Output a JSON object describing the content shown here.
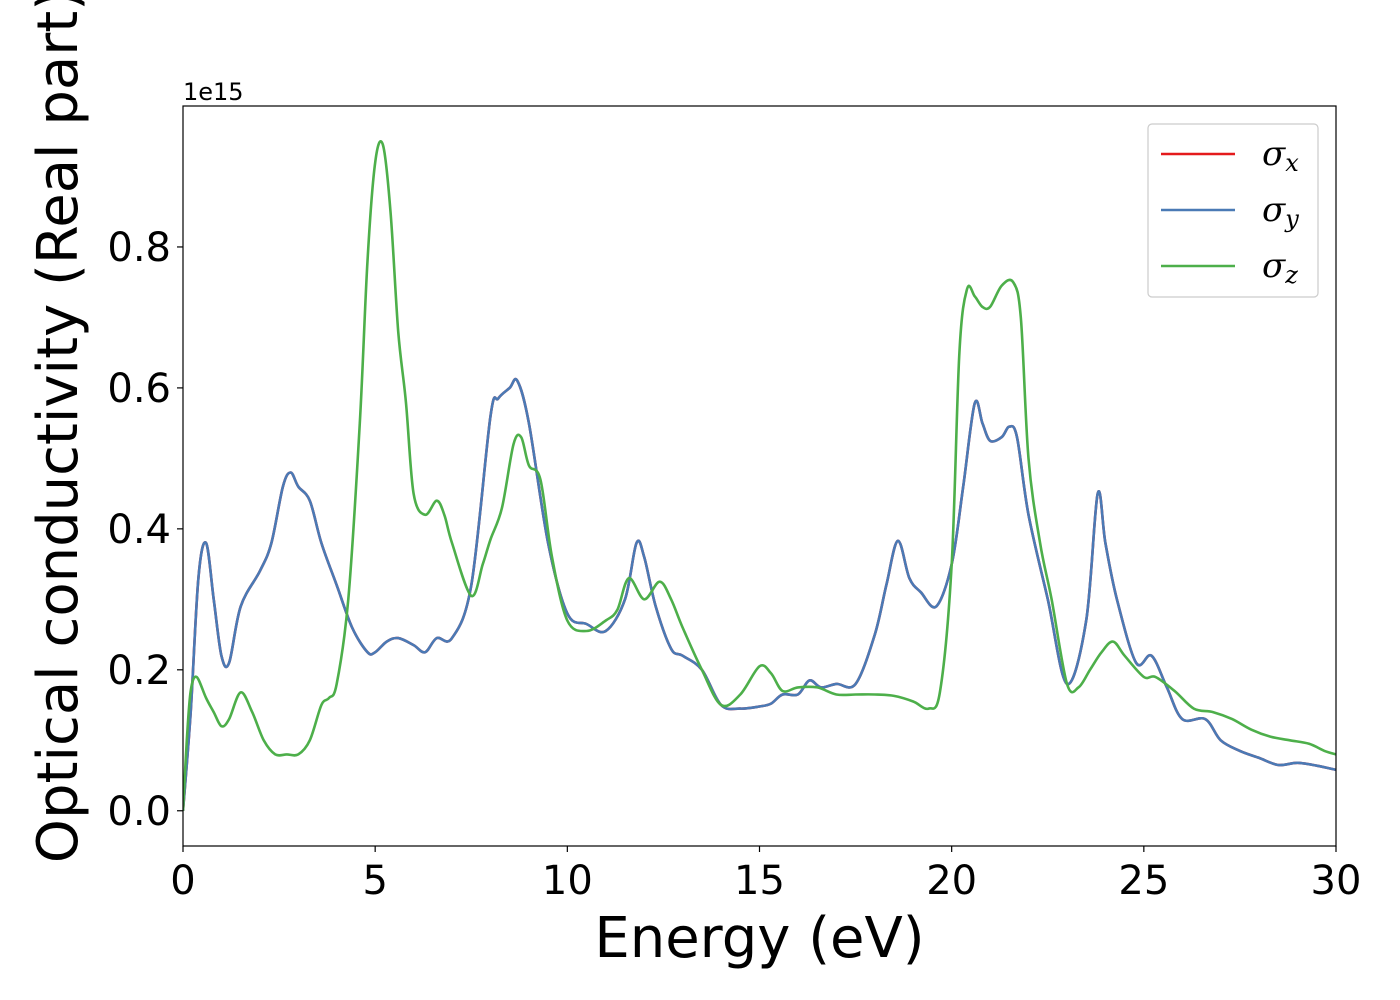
{
  "chart_data": {
    "type": "line",
    "xlabel": "Energy (eV)",
    "ylabel": "Optical conductivity (Real part)",
    "offset_label": "1e15",
    "xlim": [
      0,
      30
    ],
    "ylim": [
      -0.05,
      1.0
    ],
    "xticks": [
      0,
      5,
      10,
      15,
      20,
      25,
      30
    ],
    "xtick_labels": [
      "0",
      "5",
      "10",
      "15",
      "20",
      "25",
      "30"
    ],
    "yticks": [
      0.0,
      0.2,
      0.4,
      0.6,
      0.8
    ],
    "ytick_labels": [
      "0.0",
      "0.2",
      "0.4",
      "0.6",
      "0.8"
    ],
    "grid": false,
    "legend_position": "top-right",
    "series": [
      {
        "name": "σx",
        "symbol": "σ",
        "sub": "x",
        "color": "#e41a1c",
        "x": [
          0,
          0.2,
          0.4,
          0.6,
          0.8,
          1.0,
          1.2,
          1.5,
          2.0,
          2.3,
          2.6,
          2.8,
          3.0,
          3.3,
          3.6,
          4.0,
          4.4,
          4.8,
          5.0,
          5.3,
          5.6,
          6.0,
          6.3,
          6.6,
          7.0,
          7.5,
          8.0,
          8.2,
          8.5,
          8.7,
          9.0,
          9.5,
          10.0,
          10.5,
          11.0,
          11.5,
          11.8,
          12.0,
          12.3,
          12.7,
          13.0,
          13.5,
          14.0,
          14.5,
          15.0,
          15.3,
          15.6,
          16.0,
          16.3,
          16.6,
          17.0,
          17.5,
          18.0,
          18.3,
          18.6,
          18.9,
          19.2,
          19.6,
          20.0,
          20.3,
          20.6,
          20.8,
          21.0,
          21.3,
          21.5,
          21.7,
          22.0,
          22.5,
          23.0,
          23.5,
          23.8,
          24.0,
          24.3,
          24.8,
          25.2,
          25.6,
          26.0,
          26.6,
          27.0,
          27.5,
          28.0,
          28.5,
          29.0,
          29.5,
          30.0
        ],
        "y": [
          0.0,
          0.14,
          0.33,
          0.38,
          0.3,
          0.22,
          0.21,
          0.29,
          0.34,
          0.38,
          0.46,
          0.48,
          0.46,
          0.44,
          0.38,
          0.32,
          0.26,
          0.225,
          0.225,
          0.24,
          0.245,
          0.235,
          0.225,
          0.245,
          0.245,
          0.32,
          0.56,
          0.585,
          0.6,
          0.61,
          0.55,
          0.38,
          0.28,
          0.265,
          0.255,
          0.3,
          0.38,
          0.36,
          0.29,
          0.23,
          0.22,
          0.2,
          0.15,
          0.145,
          0.148,
          0.152,
          0.165,
          0.165,
          0.185,
          0.175,
          0.18,
          0.18,
          0.25,
          0.32,
          0.383,
          0.33,
          0.31,
          0.29,
          0.35,
          0.46,
          0.578,
          0.55,
          0.525,
          0.53,
          0.545,
          0.53,
          0.42,
          0.3,
          0.18,
          0.27,
          0.45,
          0.38,
          0.3,
          0.21,
          0.22,
          0.175,
          0.13,
          0.13,
          0.1,
          0.085,
          0.075,
          0.065,
          0.068,
          0.064,
          0.058
        ]
      },
      {
        "name": "σy",
        "symbol": "σ",
        "sub": "y",
        "color": "#4a7ab5",
        "x": [
          0,
          0.2,
          0.4,
          0.6,
          0.8,
          1.0,
          1.2,
          1.5,
          2.0,
          2.3,
          2.6,
          2.8,
          3.0,
          3.3,
          3.6,
          4.0,
          4.4,
          4.8,
          5.0,
          5.3,
          5.6,
          6.0,
          6.3,
          6.6,
          7.0,
          7.5,
          8.0,
          8.2,
          8.5,
          8.7,
          9.0,
          9.5,
          10.0,
          10.5,
          11.0,
          11.5,
          11.8,
          12.0,
          12.3,
          12.7,
          13.0,
          13.5,
          14.0,
          14.5,
          15.0,
          15.3,
          15.6,
          16.0,
          16.3,
          16.6,
          17.0,
          17.5,
          18.0,
          18.3,
          18.6,
          18.9,
          19.2,
          19.6,
          20.0,
          20.3,
          20.6,
          20.8,
          21.0,
          21.3,
          21.5,
          21.7,
          22.0,
          22.5,
          23.0,
          23.5,
          23.8,
          24.0,
          24.3,
          24.8,
          25.2,
          25.6,
          26.0,
          26.6,
          27.0,
          27.5,
          28.0,
          28.5,
          29.0,
          29.5,
          30.0
        ],
        "y": [
          0.0,
          0.14,
          0.33,
          0.38,
          0.3,
          0.22,
          0.21,
          0.29,
          0.34,
          0.38,
          0.46,
          0.48,
          0.46,
          0.44,
          0.38,
          0.32,
          0.26,
          0.225,
          0.225,
          0.24,
          0.245,
          0.235,
          0.225,
          0.245,
          0.245,
          0.32,
          0.56,
          0.585,
          0.6,
          0.61,
          0.55,
          0.38,
          0.28,
          0.265,
          0.255,
          0.3,
          0.38,
          0.36,
          0.29,
          0.23,
          0.22,
          0.2,
          0.15,
          0.145,
          0.148,
          0.152,
          0.165,
          0.165,
          0.185,
          0.175,
          0.18,
          0.18,
          0.25,
          0.32,
          0.383,
          0.33,
          0.31,
          0.29,
          0.35,
          0.46,
          0.578,
          0.55,
          0.525,
          0.53,
          0.545,
          0.53,
          0.42,
          0.3,
          0.18,
          0.27,
          0.45,
          0.38,
          0.3,
          0.21,
          0.22,
          0.175,
          0.13,
          0.13,
          0.1,
          0.085,
          0.075,
          0.065,
          0.068,
          0.064,
          0.058
        ]
      },
      {
        "name": "σz",
        "symbol": "σ",
        "sub": "z",
        "color": "#4daf4a",
        "x": [
          0,
          0.1,
          0.2,
          0.35,
          0.6,
          0.8,
          1.0,
          1.2,
          1.5,
          1.8,
          2.1,
          2.4,
          2.7,
          3.0,
          3.3,
          3.6,
          3.8,
          4.0,
          4.3,
          4.6,
          4.8,
          5.0,
          5.2,
          5.4,
          5.6,
          5.8,
          6.0,
          6.3,
          6.6,
          6.8,
          7.0,
          7.5,
          7.8,
          8.0,
          8.3,
          8.6,
          8.8,
          9.0,
          9.3,
          9.6,
          10.0,
          10.5,
          11.0,
          11.3,
          11.6,
          12.0,
          12.4,
          12.7,
          13.0,
          13.5,
          14.0,
          14.5,
          15.0,
          15.3,
          15.6,
          16.0,
          16.5,
          17.0,
          17.5,
          18.0,
          18.5,
          19.0,
          19.4,
          19.7,
          20.0,
          20.2,
          20.4,
          20.6,
          20.8,
          21.0,
          21.3,
          21.6,
          21.8,
          22.0,
          22.3,
          22.6,
          23.0,
          23.3,
          23.6,
          23.9,
          24.2,
          24.5,
          25.0,
          25.3,
          25.8,
          26.3,
          26.8,
          27.3,
          27.8,
          28.3,
          28.8,
          29.3,
          29.7,
          30.0
        ],
        "y": [
          0.0,
          0.1,
          0.17,
          0.19,
          0.16,
          0.14,
          0.12,
          0.13,
          0.168,
          0.14,
          0.1,
          0.08,
          0.08,
          0.08,
          0.1,
          0.15,
          0.16,
          0.18,
          0.3,
          0.55,
          0.78,
          0.92,
          0.945,
          0.85,
          0.68,
          0.58,
          0.45,
          0.42,
          0.44,
          0.42,
          0.38,
          0.305,
          0.35,
          0.385,
          0.43,
          0.52,
          0.53,
          0.49,
          0.47,
          0.36,
          0.27,
          0.255,
          0.27,
          0.285,
          0.33,
          0.3,
          0.325,
          0.3,
          0.26,
          0.2,
          0.15,
          0.165,
          0.205,
          0.195,
          0.17,
          0.175,
          0.175,
          0.165,
          0.165,
          0.165,
          0.163,
          0.155,
          0.145,
          0.17,
          0.35,
          0.65,
          0.74,
          0.73,
          0.715,
          0.715,
          0.745,
          0.75,
          0.7,
          0.5,
          0.38,
          0.3,
          0.18,
          0.175,
          0.2,
          0.225,
          0.24,
          0.22,
          0.19,
          0.19,
          0.17,
          0.145,
          0.14,
          0.13,
          0.115,
          0.105,
          0.1,
          0.095,
          0.085,
          0.08
        ]
      }
    ]
  }
}
